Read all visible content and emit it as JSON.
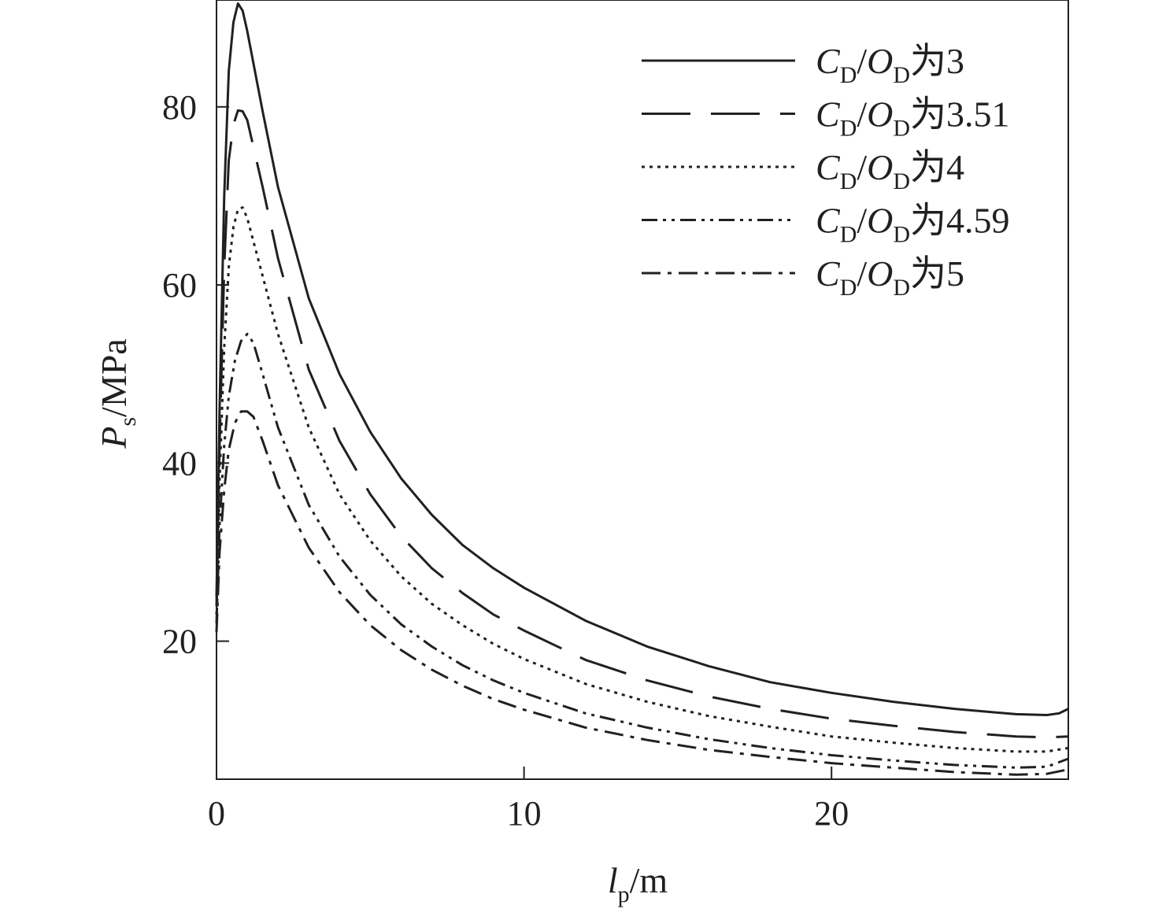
{
  "chart_data": {
    "type": "line",
    "xlabel": {
      "main": "l",
      "sub": "p",
      "unit": "/m"
    },
    "ylabel": {
      "main": "P",
      "sub": "s",
      "unit": "/MPa"
    },
    "xlim": [
      0,
      27.7
    ],
    "ylim": [
      4.5,
      92
    ],
    "xticks": [
      0,
      10,
      20
    ],
    "xtick_labels": [
      "0",
      "10",
      "20"
    ],
    "yticks": [
      20,
      40,
      60,
      80
    ],
    "ytick_labels": [
      "20",
      "40",
      "60",
      "80"
    ],
    "grid": false,
    "legend_position": "top-right",
    "legend_prefix": {
      "c": "C",
      "c_sub": "D",
      "sep": "/",
      "o": "O",
      "o_sub": "D",
      "word": "为"
    },
    "series": [
      {
        "name": "3",
        "dash": "solid",
        "points": [
          [
            0,
            25
          ],
          [
            0.1,
            46
          ],
          [
            0.25,
            70
          ],
          [
            0.4,
            84
          ],
          [
            0.55,
            89.5
          ],
          [
            0.7,
            91.6
          ],
          [
            0.85,
            90.8
          ],
          [
            1.0,
            88.5
          ],
          [
            1.5,
            79.5
          ],
          [
            2,
            71
          ],
          [
            3,
            58.5
          ],
          [
            4,
            50
          ],
          [
            5,
            43.5
          ],
          [
            6,
            38.3
          ],
          [
            7,
            34.2
          ],
          [
            8,
            30.8
          ],
          [
            9,
            28.2
          ],
          [
            10,
            26
          ],
          [
            12,
            22.3
          ],
          [
            14,
            19.4
          ],
          [
            16,
            17.2
          ],
          [
            18,
            15.4
          ],
          [
            20,
            14.2
          ],
          [
            22,
            13.2
          ],
          [
            24,
            12.4
          ],
          [
            26,
            11.8
          ],
          [
            27,
            11.7
          ],
          [
            27.4,
            11.9
          ],
          [
            27.7,
            12.4
          ]
        ]
      },
      {
        "name": "3.51",
        "dash": "longdash",
        "points": [
          [
            0,
            24
          ],
          [
            0.1,
            42
          ],
          [
            0.25,
            62
          ],
          [
            0.4,
            74
          ],
          [
            0.55,
            78
          ],
          [
            0.7,
            79.6
          ],
          [
            0.85,
            79.5
          ],
          [
            1.0,
            78.5
          ],
          [
            1.5,
            71
          ],
          [
            2,
            63
          ],
          [
            3,
            50.5
          ],
          [
            4,
            42.5
          ],
          [
            5,
            36.5
          ],
          [
            6,
            31.8
          ],
          [
            7,
            28.2
          ],
          [
            8,
            25.4
          ],
          [
            9,
            23
          ],
          [
            10,
            21.2
          ],
          [
            12,
            17.9
          ],
          [
            14,
            15.6
          ],
          [
            16,
            13.8
          ],
          [
            18,
            12.4
          ],
          [
            20,
            11.3
          ],
          [
            22,
            10.5
          ],
          [
            24,
            9.8
          ],
          [
            26,
            9.3
          ],
          [
            27,
            9.2
          ],
          [
            27.7,
            9.3
          ]
        ]
      },
      {
        "name": "4",
        "dash": "dotted",
        "points": [
          [
            0,
            23
          ],
          [
            0.1,
            38
          ],
          [
            0.25,
            53
          ],
          [
            0.4,
            62
          ],
          [
            0.55,
            66.5
          ],
          [
            0.7,
            68.5
          ],
          [
            0.85,
            68.7
          ],
          [
            1.0,
            67.5
          ],
          [
            1.5,
            61
          ],
          [
            2,
            54.5
          ],
          [
            3,
            44
          ],
          [
            4,
            36.5
          ],
          [
            5,
            31.3
          ],
          [
            6,
            27.3
          ],
          [
            7,
            24.2
          ],
          [
            8,
            21.8
          ],
          [
            9,
            19.7
          ],
          [
            10,
            18
          ],
          [
            12,
            15.2
          ],
          [
            14,
            13.2
          ],
          [
            16,
            11.6
          ],
          [
            18,
            10.4
          ],
          [
            20,
            9.3
          ],
          [
            22,
            8.6
          ],
          [
            24,
            8
          ],
          [
            26,
            7.6
          ],
          [
            27,
            7.6
          ],
          [
            27.7,
            8
          ]
        ]
      },
      {
        "name": "4.59",
        "dash": "dashdotdot",
        "points": [
          [
            0,
            22
          ],
          [
            0.1,
            33
          ],
          [
            0.25,
            42
          ],
          [
            0.4,
            47.5
          ],
          [
            0.6,
            51.5
          ],
          [
            0.8,
            53.7
          ],
          [
            1.0,
            54.5
          ],
          [
            1.2,
            53.5
          ],
          [
            1.5,
            50
          ],
          [
            2,
            44
          ],
          [
            3,
            35.3
          ],
          [
            4,
            29.5
          ],
          [
            5,
            25.2
          ],
          [
            6,
            21.9
          ],
          [
            7,
            19.4
          ],
          [
            8,
            17.3
          ],
          [
            9,
            15.6
          ],
          [
            10,
            14.2
          ],
          [
            12,
            11.9
          ],
          [
            14,
            10.3
          ],
          [
            16,
            9
          ],
          [
            18,
            8
          ],
          [
            20,
            7.2
          ],
          [
            22,
            6.6
          ],
          [
            24,
            6.1
          ],
          [
            26,
            5.8
          ],
          [
            27,
            5.9
          ],
          [
            27.7,
            6.8
          ]
        ]
      },
      {
        "name": "5",
        "dash": "dashdot",
        "points": [
          [
            0,
            21
          ],
          [
            0.1,
            30
          ],
          [
            0.25,
            37
          ],
          [
            0.4,
            41.5
          ],
          [
            0.6,
            44.5
          ],
          [
            0.8,
            45.8
          ],
          [
            1.0,
            45.8
          ],
          [
            1.2,
            45.2
          ],
          [
            1.5,
            42.5
          ],
          [
            2,
            37.5
          ],
          [
            3,
            30.5
          ],
          [
            4,
            25.5
          ],
          [
            5,
            21.8
          ],
          [
            6,
            19
          ],
          [
            7,
            16.8
          ],
          [
            8,
            15
          ],
          [
            9,
            13.5
          ],
          [
            10,
            12.3
          ],
          [
            12,
            10.3
          ],
          [
            14,
            8.9
          ],
          [
            16,
            7.8
          ],
          [
            18,
            7
          ],
          [
            20,
            6.3
          ],
          [
            22,
            5.8
          ],
          [
            24,
            5.3
          ],
          [
            26,
            5
          ],
          [
            27,
            5.1
          ],
          [
            27.7,
            5.6
          ]
        ]
      }
    ]
  }
}
